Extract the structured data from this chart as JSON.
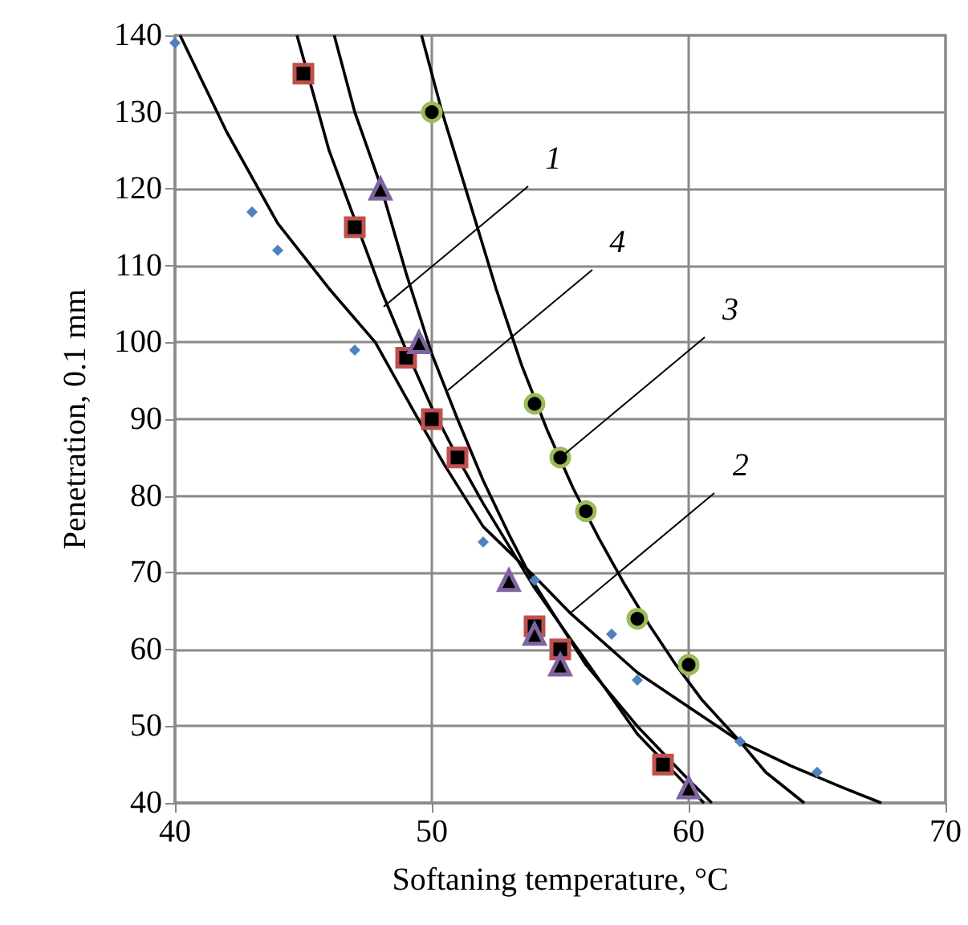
{
  "chart_data": {
    "type": "scatter",
    "xlabel": "Softaning temperature, °C",
    "ylabel": "Penetration, 0.1 mm",
    "xlim": [
      40,
      70
    ],
    "xticks": [
      40,
      50,
      60,
      70
    ],
    "ylim": [
      40,
      140
    ],
    "yticks": [
      40,
      50,
      60,
      70,
      80,
      90,
      100,
      110,
      120,
      130,
      140
    ],
    "grid": true,
    "series": [
      {
        "marker": "diamond",
        "color": "#4f81bd",
        "x": [
          40,
          43,
          44,
          47,
          52,
          54,
          57,
          58,
          62,
          65
        ],
        "values": [
          139,
          117,
          112,
          99,
          74,
          69,
          62,
          56,
          48,
          44
        ]
      },
      {
        "marker": "square",
        "color": "#c0504d",
        "x": [
          45,
          47,
          49,
          50,
          51,
          54,
          55,
          59
        ],
        "values": [
          135,
          115,
          98,
          90,
          85,
          63,
          60,
          45
        ]
      },
      {
        "marker": "triangle",
        "color": "#8064a2",
        "x": [
          48,
          49.5,
          53,
          54,
          55,
          60
        ],
        "values": [
          120,
          100,
          69,
          62,
          58,
          42
        ]
      },
      {
        "marker": "circle",
        "color": "#9bbb59",
        "x": [
          50,
          54,
          55,
          56,
          58,
          60
        ],
        "values": [
          130,
          92,
          85,
          78,
          64,
          58
        ]
      },
      {
        "type": "line",
        "marker": "none",
        "line_style": "solid",
        "color": "#000000",
        "x": [
          40.2,
          42,
          44,
          46,
          47.8,
          49.3,
          50.5,
          52,
          54,
          55.4,
          58,
          60,
          62,
          64,
          66,
          67.5
        ],
        "values": [
          140,
          127.5,
          115.5,
          107,
          100,
          91,
          84,
          76,
          69.5,
          64.7,
          57,
          52.5,
          48,
          44.8,
          42,
          40
        ]
      },
      {
        "type": "line",
        "marker": "none",
        "line_style": "solid",
        "color": "#000000",
        "x": [
          44.75,
          46,
          47,
          48,
          49,
          50,
          51,
          52,
          54,
          56,
          58,
          60,
          60.6
        ],
        "values": [
          140,
          125,
          116,
          107,
          99,
          91.5,
          85,
          79,
          68,
          58.5,
          49,
          42,
          40
        ]
      },
      {
        "type": "line",
        "marker": "none",
        "line_style": "solid",
        "color": "#000000",
        "x": [
          46.2,
          47,
          48,
          49,
          50,
          51,
          52,
          53,
          54,
          56,
          58,
          60,
          60.9
        ],
        "values": [
          140,
          130,
          120.5,
          109,
          98.5,
          90,
          82,
          75,
          68.5,
          58,
          50,
          43,
          40
        ]
      },
      {
        "type": "line",
        "marker": "none",
        "line_style": "solid",
        "color": "#000000",
        "x": [
          49.6,
          50.4,
          51.5,
          52.5,
          53.5,
          54.5,
          55.5,
          56.5,
          57.5,
          58.5,
          59.5,
          60.5,
          62,
          63,
          64.5
        ],
        "values": [
          140,
          130,
          118,
          107,
          97,
          88.5,
          81,
          74.5,
          68.5,
          63,
          58,
          53.5,
          48,
          44,
          40
        ]
      }
    ],
    "annotations": [
      {
        "text": "1",
        "x": 48.1,
        "y": 104.6
      },
      {
        "text": "4",
        "x": 50.6,
        "y": 93.8
      },
      {
        "text": "3",
        "x": 55,
        "y": 85
      },
      {
        "text": "2",
        "x": 55.4,
        "y": 64.7
      }
    ]
  }
}
